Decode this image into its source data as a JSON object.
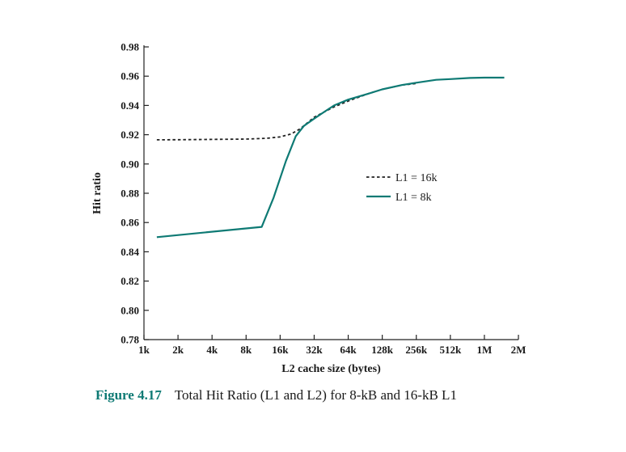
{
  "chart_data": {
    "type": "line",
    "xlabel": "L2 cache size (bytes)",
    "ylabel": "Hit ratio",
    "x_scale": "log2",
    "x_ticks": [
      "1k",
      "2k",
      "4k",
      "8k",
      "16k",
      "32k",
      "64k",
      "128k",
      "256k",
      "512k",
      "1M",
      "2M"
    ],
    "x_tick_values_kb": [
      1,
      2,
      4,
      8,
      16,
      32,
      64,
      128,
      256,
      512,
      1024,
      2048
    ],
    "y_ticks": [
      "0.78",
      "0.80",
      "0.82",
      "0.84",
      "0.86",
      "0.88",
      "0.90",
      "0.92",
      "0.94",
      "0.96",
      "0.98"
    ],
    "ylim": [
      0.78,
      0.98
    ],
    "xlim_kb": [
      1,
      2048
    ],
    "grid": false,
    "legend_position": "right-middle",
    "series": [
      {
        "name": "L1 = 16k",
        "style": "dashed",
        "color": "#222222",
        "x_kb": [
          1.3,
          2,
          4,
          8,
          12,
          16,
          20,
          24,
          32,
          48,
          64,
          96,
          128,
          192,
          256
        ],
        "y": [
          0.9165,
          0.9166,
          0.9168,
          0.917,
          0.9175,
          0.9185,
          0.9205,
          0.924,
          0.932,
          0.939,
          0.943,
          0.948,
          0.951,
          0.954,
          0.955
        ]
      },
      {
        "name": "L1 = 8k",
        "style": "solid",
        "color": "#0e7a74",
        "x_kb": [
          1.3,
          11,
          14,
          18,
          22,
          26,
          32,
          40,
          48,
          64,
          96,
          128,
          192,
          256,
          384,
          512,
          768,
          1024,
          1536
        ],
        "y": [
          0.85,
          0.857,
          0.877,
          0.902,
          0.919,
          0.926,
          0.931,
          0.936,
          0.94,
          0.944,
          0.948,
          0.951,
          0.954,
          0.9555,
          0.9575,
          0.958,
          0.9588,
          0.959,
          0.959
        ]
      }
    ]
  },
  "caption": {
    "figure_number": "Figure 4.17",
    "text": "Total Hit Ratio (L1 and L2) for 8-kB and 16-kB L1"
  }
}
